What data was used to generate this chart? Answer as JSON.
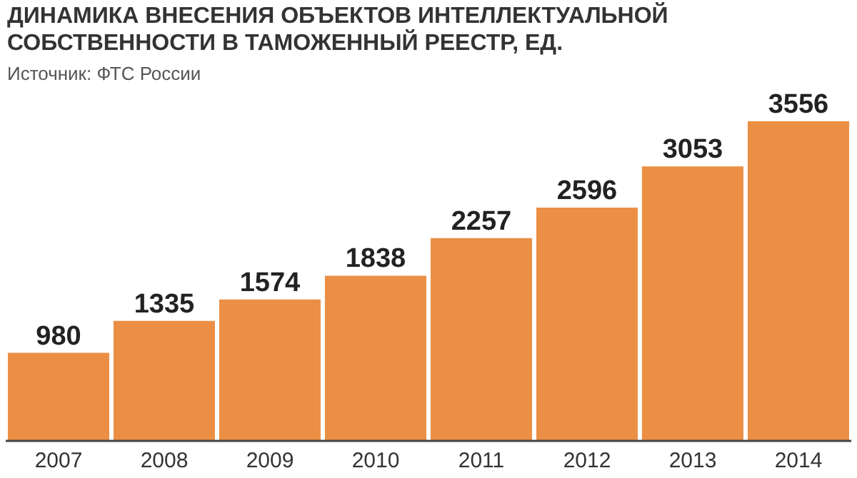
{
  "chart_data": {
    "type": "bar",
    "title": "ДИНАМИКА ВНЕСЕНИЯ ОБЪЕКТОВ ИНТЕЛЛЕКТУАЛЬНОЙ СОБСТВЕННОСТИ В ТАМОЖЕННЫЙ РЕЕСТР, ЕД.",
    "annotations": [
      "Источник: ФТС России"
    ],
    "categories": [
      "2007",
      "2008",
      "2009",
      "2010",
      "2011",
      "2012",
      "2013",
      "2014"
    ],
    "values": [
      980,
      1335,
      1574,
      1838,
      2257,
      2596,
      3053,
      3556
    ],
    "color": "#eb8f45",
    "data_labels": true
  }
}
